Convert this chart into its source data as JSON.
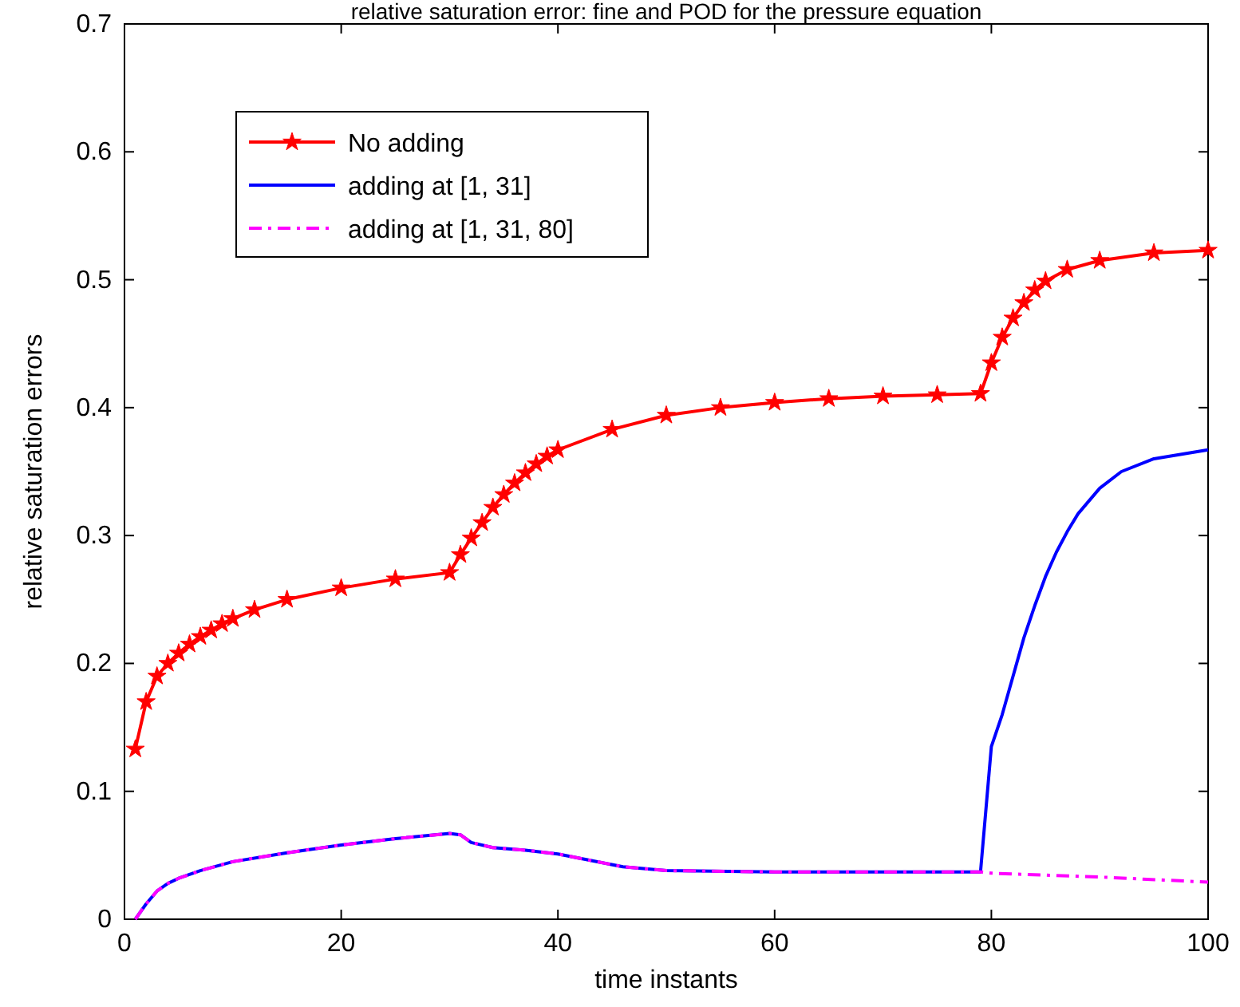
{
  "chart_data": {
    "type": "line",
    "title": "relative saturation error: fine and POD for the pressure equation",
    "xlabel": "time instants",
    "ylabel": "relative saturation errors",
    "xlim": [
      0,
      100
    ],
    "ylim": [
      0,
      0.7
    ],
    "xticks": [
      0,
      20,
      40,
      60,
      80,
      100
    ],
    "yticks": [
      0,
      0.1,
      0.2,
      0.3,
      0.4,
      0.5,
      0.6,
      0.7
    ],
    "grid": false,
    "legend": "top left",
    "series": [
      {
        "name": "No adding",
        "color": "#ff0000",
        "marker": "star",
        "line_style": "solid",
        "x": [
          1,
          2,
          3,
          4,
          5,
          6,
          7,
          8,
          9,
          10,
          12,
          15,
          20,
          25,
          30,
          31,
          32,
          33,
          34,
          35,
          36,
          37,
          38,
          39,
          40,
          45,
          50,
          55,
          60,
          65,
          70,
          75,
          79,
          80,
          81,
          82,
          83,
          84,
          85,
          87,
          90,
          95,
          100
        ],
        "values": [
          0.133,
          0.17,
          0.19,
          0.2,
          0.208,
          0.215,
          0.221,
          0.226,
          0.231,
          0.235,
          0.242,
          0.25,
          0.259,
          0.266,
          0.271,
          0.285,
          0.298,
          0.31,
          0.322,
          0.332,
          0.341,
          0.349,
          0.356,
          0.362,
          0.367,
          0.383,
          0.394,
          0.4,
          0.404,
          0.407,
          0.409,
          0.41,
          0.411,
          0.435,
          0.455,
          0.47,
          0.482,
          0.492,
          0.499,
          0.508,
          0.515,
          0.521,
          0.523
        ]
      },
      {
        "name": "adding at [1, 31]",
        "color": "#0000ff",
        "marker": "none",
        "line_style": "solid",
        "x": [
          1,
          2,
          3,
          4,
          5,
          7,
          10,
          15,
          20,
          25,
          30,
          31,
          32,
          34,
          37,
          40,
          43,
          46,
          50,
          60,
          70,
          79,
          80,
          81,
          82,
          83,
          84,
          85,
          86,
          87,
          88,
          90,
          92,
          95,
          100
        ],
        "values": [
          0,
          0.012,
          0.022,
          0.028,
          0.032,
          0.038,
          0.045,
          0.052,
          0.058,
          0.063,
          0.067,
          0.066,
          0.06,
          0.056,
          0.054,
          0.051,
          0.046,
          0.041,
          0.038,
          0.037,
          0.037,
          0.037,
          0.135,
          0.16,
          0.19,
          0.22,
          0.245,
          0.268,
          0.287,
          0.303,
          0.317,
          0.337,
          0.35,
          0.36,
          0.367
        ]
      },
      {
        "name": "adding at [1, 31, 80]",
        "color": "#ff00ff",
        "marker": "none",
        "line_style": "dashed",
        "x": [
          1,
          2,
          3,
          4,
          5,
          7,
          10,
          15,
          20,
          25,
          30,
          31,
          32,
          34,
          37,
          40,
          43,
          46,
          50,
          60,
          70,
          79,
          80,
          90,
          100
        ],
        "values": [
          0,
          0.012,
          0.022,
          0.028,
          0.032,
          0.038,
          0.045,
          0.052,
          0.058,
          0.063,
          0.067,
          0.066,
          0.06,
          0.056,
          0.054,
          0.051,
          0.046,
          0.041,
          0.038,
          0.037,
          0.037,
          0.037,
          0.036,
          0.033,
          0.029
        ]
      }
    ]
  }
}
